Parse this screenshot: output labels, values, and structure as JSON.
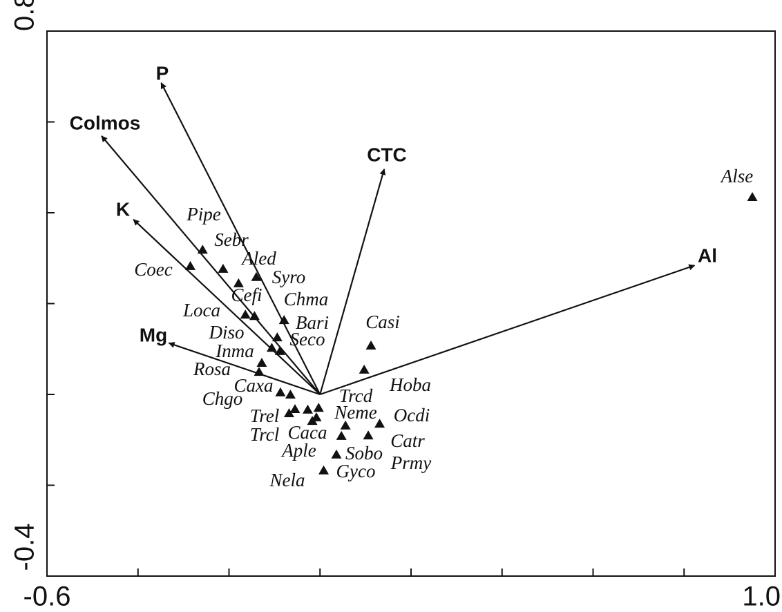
{
  "chart_data": {
    "type": "biplot",
    "xlim": [
      -0.6,
      1.0
    ],
    "ylim": [
      -0.4,
      0.8
    ],
    "xticks": [
      -0.6,
      {
        "value": -0.4,
        "label": null
      },
      {
        "value": -0.2,
        "label": null
      },
      {
        "value": 0,
        "label": null
      },
      {
        "value": 0.2,
        "label": null
      },
      {
        "value": 0.4,
        "label": null
      },
      {
        "value": 0.6,
        "label": null
      },
      {
        "value": 0.8,
        "label": null
      },
      {
        "value": 1,
        "label": "1.0"
      }
    ],
    "yticks": [
      -0.4,
      {
        "value": -0.2,
        "label": null
      },
      {
        "value": 0,
        "label": null
      },
      {
        "value": 0.2,
        "label": null
      },
      {
        "value": 0.4,
        "label": null
      },
      {
        "value": 0.6,
        "label": null
      },
      0.8
    ],
    "variables": {
      "labels": [
        "P",
        "Colmos",
        "CTC",
        "K",
        "Al",
        "Mg"
      ],
      "x": [
        -0.349,
        -0.48,
        0.141,
        -0.41,
        0.823,
        -0.332
      ],
      "y": [
        0.686,
        0.569,
        0.496,
        0.385,
        0.284,
        0.113
      ]
    },
    "species": {
      "labels": [
        "Alse",
        "Pipe",
        "Sebr",
        "Coec",
        "Aled",
        "Syro",
        "Cefi",
        "Loca",
        "Chma",
        "Bari",
        "Diso",
        "Seco",
        "Inma",
        "Rosa",
        "Caxa",
        "Chgo",
        "Trel",
        "Trcl",
        "Aple",
        "Trcd",
        "Caca",
        "Nela",
        "Neme",
        "Prmy",
        "Ocdi",
        "Catr",
        "Sobo",
        "Gyco",
        "Casi",
        "Hoba"
      ],
      "x": [
        0.95,
        -0.258,
        -0.213,
        -0.285,
        -0.14,
        -0.179,
        -0.144,
        -0.164,
        -0.079,
        -0.094,
        -0.106,
        -0.088,
        -0.128,
        -0.134,
        -0.087,
        -0.065,
        -0.068,
        -0.055,
        -0.027,
        -0.003,
        -0.017,
        -0.008,
        0.056,
        0.047,
        0.131,
        0.106,
        0.036,
        0.008,
        0.112,
        0.097
      ],
      "y": [
        0.435,
        0.319,
        0.277,
        0.283,
        0.259,
        0.245,
        0.173,
        0.176,
        0.164,
        0.126,
        0.103,
        0.096,
        0.07,
        0.05,
        0.005,
        0,
        -0.041,
        -0.032,
        -0.033,
        -0.029,
        -0.058,
        -0.05,
        -0.068,
        -0.091,
        -0.064,
        -0.09,
        -0.132,
        -0.167,
        0.108,
        0.055
      ]
    }
  }
}
